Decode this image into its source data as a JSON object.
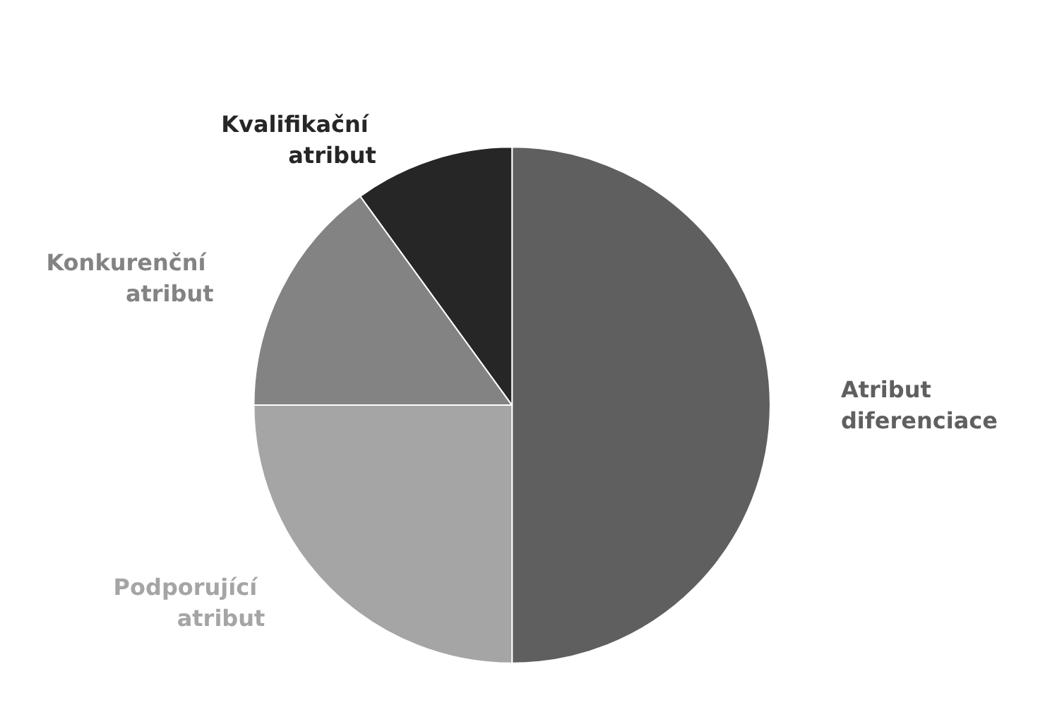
{
  "chart_data": {
    "type": "pie",
    "categories": [
      "Atribut diferenciace",
      "Podporující atribut",
      "Konkurenční atribut",
      "Kvalifikační atribut"
    ],
    "values": [
      50,
      25,
      15,
      10
    ],
    "colors": [
      "#5f5f5f",
      "#a5a5a5",
      "#838383",
      "#262626"
    ],
    "legend": false
  }
}
